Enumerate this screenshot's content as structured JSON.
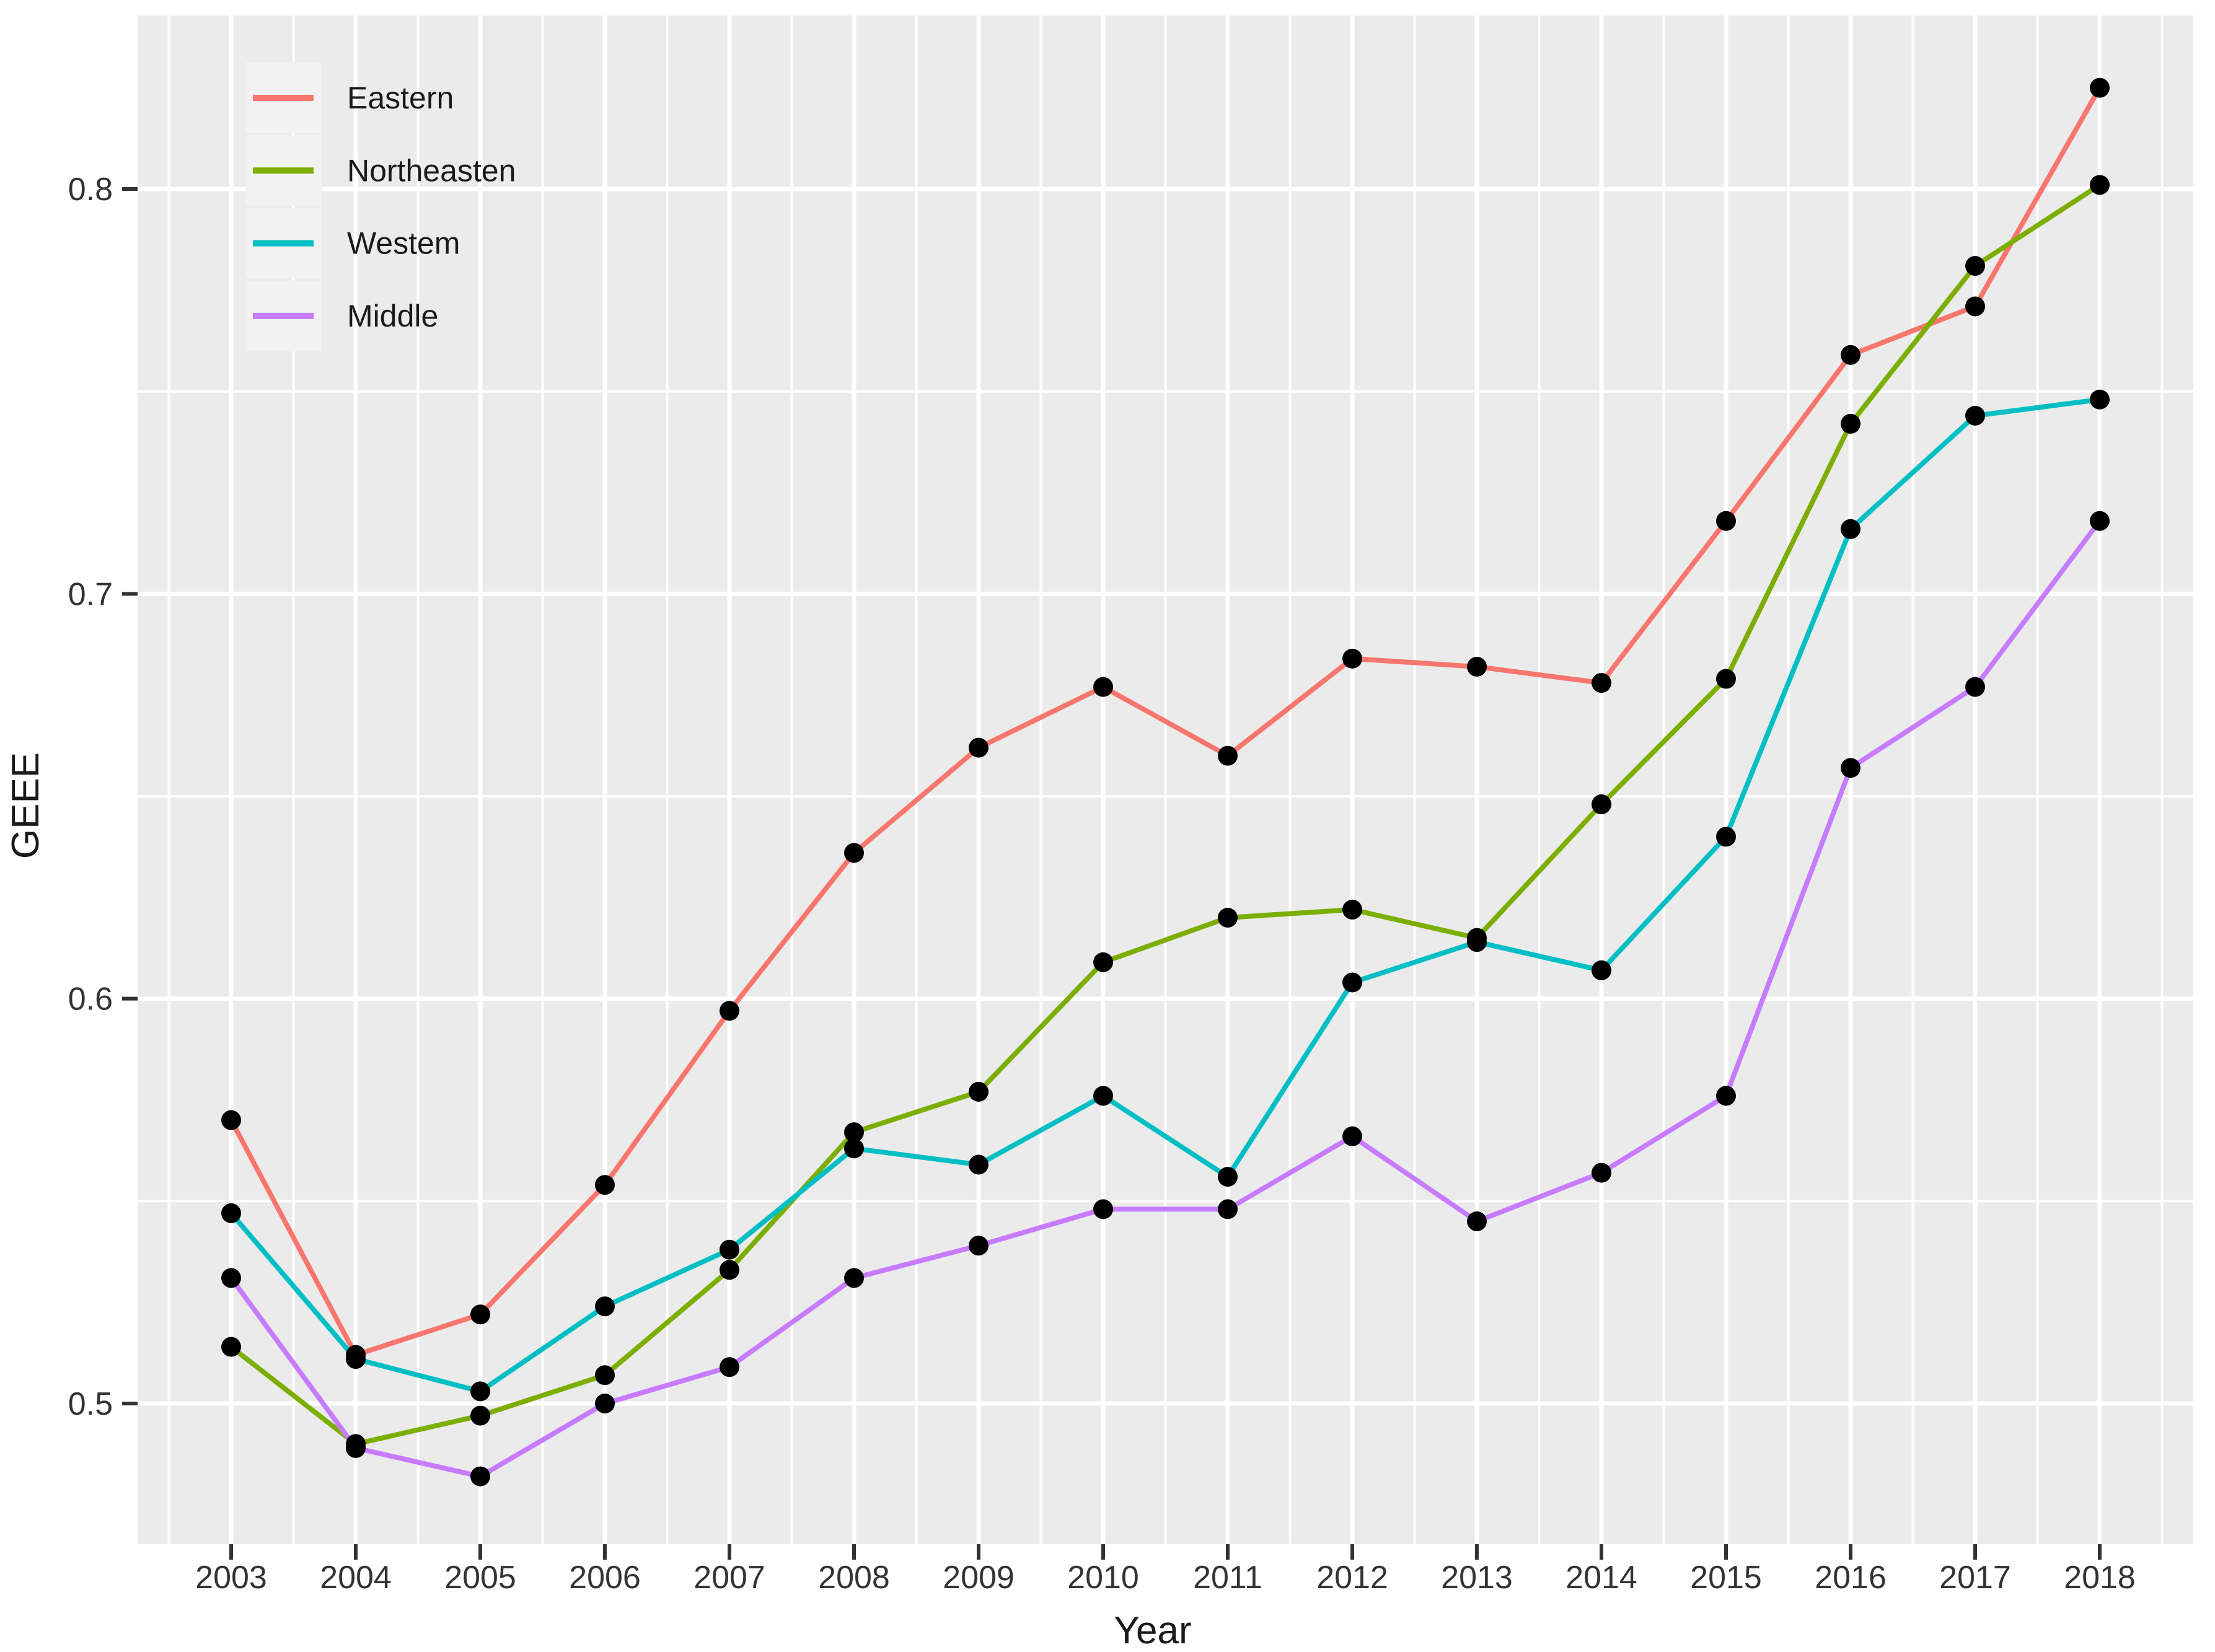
{
  "chart_data": {
    "type": "line",
    "title": "",
    "xlabel": "Year",
    "ylabel": "GEEE",
    "x": [
      2003,
      2004,
      2005,
      2006,
      2007,
      2008,
      2009,
      2010,
      2011,
      2012,
      2013,
      2014,
      2015,
      2016,
      2017,
      2018
    ],
    "x_tick_labels": [
      "2003",
      "2004",
      "2005",
      "2006",
      "2007",
      "2008",
      "2009",
      "2010",
      "2011",
      "2012",
      "2013",
      "2014",
      "2015",
      "2016",
      "2017",
      "2018"
    ],
    "y_ticks": [
      0.5,
      0.6,
      0.7,
      0.8
    ],
    "y_tick_labels": [
      "0.5",
      "0.6",
      "0.7",
      "0.8"
    ],
    "y_minor_ticks": [
      0.55,
      0.65,
      0.75
    ],
    "xlim": [
      2002.25,
      2018.75
    ],
    "ylim": [
      0.465,
      0.843
    ],
    "grid": "major and minor white gridlines on gray panel",
    "legend_position": "top-left inside panel",
    "panel_bg": "#EBEBEB",
    "legend_key_bg": "#F2F2F2",
    "grid_color": "#FFFFFF",
    "tick_color": "#333333",
    "axis_text_color": "#333333",
    "axis_title_color": "#1a1a1a",
    "point_color": "#000000",
    "series": [
      {
        "name": "Eastern",
        "color": "#F8766D",
        "values": [
          0.57,
          0.512,
          0.522,
          0.554,
          0.597,
          0.636,
          0.662,
          0.677,
          0.66,
          0.684,
          0.682,
          0.678,
          0.718,
          0.759,
          0.771,
          0.825
        ]
      },
      {
        "name": "Northeasten",
        "color": "#7CAE00",
        "values": [
          0.514,
          0.49,
          0.497,
          0.507,
          0.533,
          0.567,
          0.577,
          0.609,
          0.62,
          0.622,
          0.615,
          0.648,
          0.679,
          0.742,
          0.781,
          0.801
        ]
      },
      {
        "name": "Westem",
        "color": "#00BFC4",
        "values": [
          0.547,
          0.511,
          0.503,
          0.524,
          0.538,
          0.563,
          0.559,
          0.576,
          0.556,
          0.604,
          0.614,
          0.607,
          0.64,
          0.716,
          0.744,
          0.748
        ]
      },
      {
        "name": "Middle",
        "color": "#C77CFF",
        "values": [
          0.531,
          0.489,
          0.482,
          0.5,
          0.509,
          0.531,
          0.539,
          0.548,
          0.548,
          0.566,
          0.545,
          0.557,
          0.576,
          0.657,
          0.677,
          0.718
        ]
      }
    ]
  }
}
